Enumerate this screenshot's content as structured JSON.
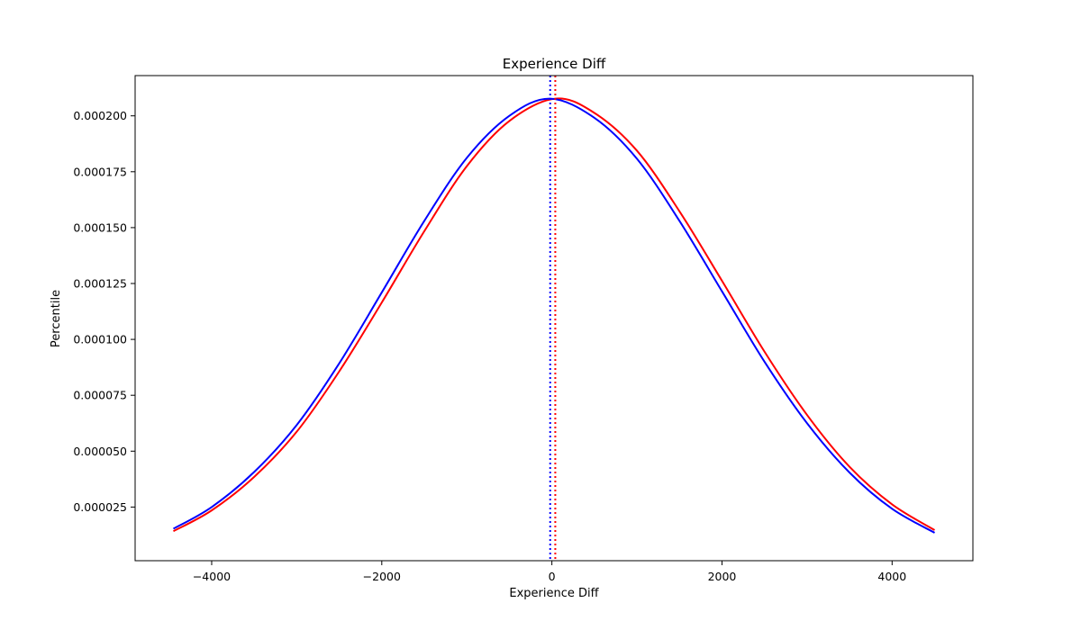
{
  "chart_data": {
    "type": "line",
    "title": "Experience Diff",
    "xlabel": "Experience Diff",
    "ylabel": "Percentile",
    "xlim": [
      -4900,
      4950
    ],
    "ylim": [
      1e-06,
      0.000218
    ],
    "x_ticks": [
      -4000,
      -2000,
      0,
      2000,
      4000
    ],
    "x_tick_labels": [
      "−4000",
      "−2000",
      "0",
      "2000",
      "4000"
    ],
    "y_ticks": [
      2.5e-05,
      5e-05,
      7.5e-05,
      0.0001,
      0.000125,
      0.00015,
      0.000175,
      0.0002
    ],
    "y_tick_labels": [
      "0.000025",
      "0.000050",
      "0.000075",
      "0.000100",
      "0.000125",
      "0.000150",
      "0.000175",
      "0.000200"
    ],
    "grid": false,
    "series": [
      {
        "color": "#ff0000",
        "x": [
          -4450,
          -4000,
          -3500,
          -3000,
          -2500,
          -2000,
          -1500,
          -1000,
          -500,
          40,
          500,
          1000,
          1500,
          2000,
          2500,
          3000,
          3500,
          4000,
          4500
        ],
        "values": [
          1.42e-05,
          2.35e-05,
          3.85e-05,
          5.87e-05,
          8.57e-05,
          0.0001165,
          0.0001484,
          0.0001775,
          0.0001977,
          0.0002077,
          0.0002013,
          0.0001844,
          0.0001573,
          0.0001262,
          9.45e-05,
          6.62e-05,
          4.3e-05,
          2.62e-05,
          1.47e-05
        ]
      },
      {
        "color": "#0000ff",
        "x": [
          -4450,
          -4000,
          -3500,
          -3000,
          -2500,
          -2000,
          -1500,
          -1000,
          -500,
          -20,
          500,
          1000,
          1500,
          2000,
          2500,
          3000,
          3500,
          4000,
          4500
        ],
        "values": [
          1.53e-05,
          2.5e-05,
          4.07e-05,
          6.17e-05,
          8.93e-05,
          0.000121,
          0.000153,
          0.0001812,
          0.0002,
          0.0002077,
          0.0001991,
          0.0001808,
          0.000153,
          0.0001215,
          9e-05,
          6.25e-05,
          4.04e-05,
          2.42e-05,
          1.35e-05
        ]
      }
    ],
    "vlines": [
      {
        "x": 40,
        "color": "#ff0000",
        "style": "dotted"
      },
      {
        "x": -20,
        "color": "#0000ff",
        "style": "dotted"
      }
    ]
  }
}
